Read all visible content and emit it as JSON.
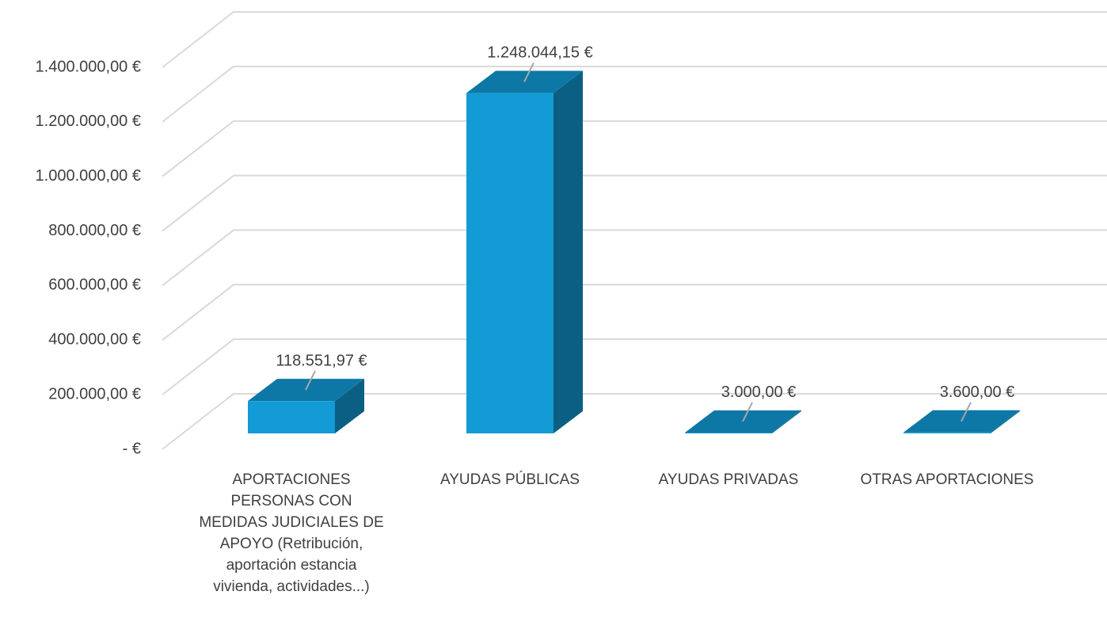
{
  "chart_data": {
    "type": "bar3d",
    "categories": [
      "APORTACIONES PERSONAS CON MEDIDAS JUDICIALES DE APOYO (Retribución, aportación estancia vivienda, actividades...)",
      "AYUDAS PÚBLICAS",
      "AYUDAS PRIVADAS",
      "OTRAS APORTACIONES"
    ],
    "values": [
      118551.97,
      1248044.15,
      3000,
      3600
    ],
    "value_labels": [
      "118.551,97 €",
      "1.248.044,15 €",
      "3.000,00 €",
      "3.600,00 €"
    ],
    "color": "#129bd4",
    "ylim": [
      0,
      1400000
    ],
    "yticks": [
      {
        "value": 0,
        "label": "- €"
      },
      {
        "value": 200000,
        "label": "200.000,00 €"
      },
      {
        "value": 400000,
        "label": "400.000,00 €"
      },
      {
        "value": 600000,
        "label": "600.000,00 €"
      },
      {
        "value": 800000,
        "label": "800.000,00 €"
      },
      {
        "value": 1000000,
        "label": "1.000.000,00 €"
      },
      {
        "value": 1200000,
        "label": "1.200.000,00 €"
      },
      {
        "value": 1400000,
        "label": "1.400.000,00 €"
      }
    ],
    "grid": true
  }
}
